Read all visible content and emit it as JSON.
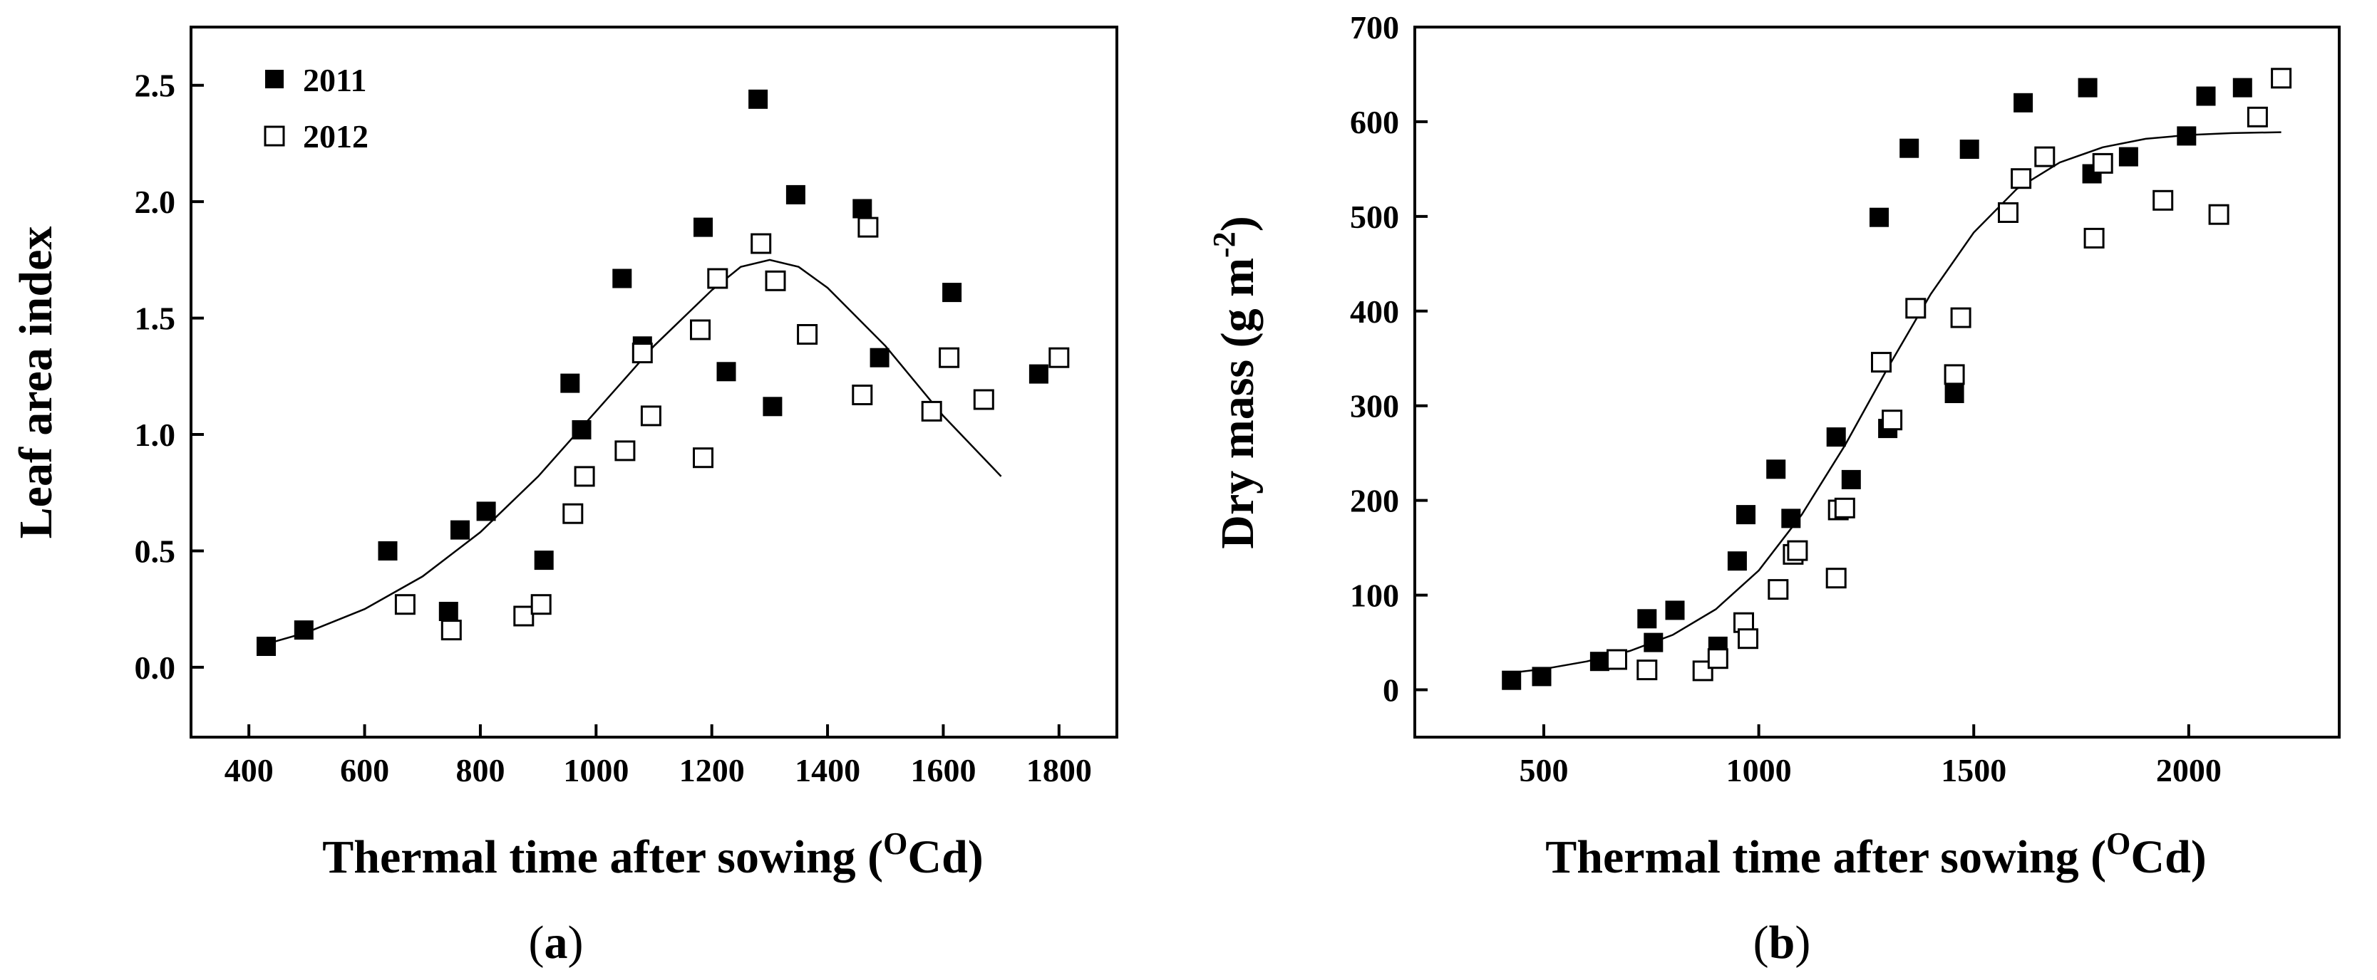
{
  "chart_data": [
    {
      "type": "scatter",
      "panel_label": "a",
      "xlabel": "Thermal time after sowing (",
      "xlabel_sup": "O",
      "xlabel_unit": "Cd)",
      "ylabel": "Leaf area index",
      "xlim": [
        300,
        1900
      ],
      "ylim": [
        -0.3,
        2.75
      ],
      "x_ticks": [
        400,
        600,
        800,
        1000,
        1200,
        1400,
        1600,
        1800
      ],
      "x_tick_labels": [
        "400",
        "600",
        "800",
        "1000",
        "1200",
        "1400",
        "1600",
        "1800"
      ],
      "y_ticks": [
        0,
        0.5,
        1,
        1.5,
        2,
        2.5
      ],
      "y_tick_labels": [
        "0.0",
        "0.5",
        "1.0",
        "1.5",
        "2.0",
        "2.5"
      ],
      "legend": {
        "position": "top-left",
        "entries": [
          "2011",
          "2012"
        ]
      },
      "series": [
        {
          "name": "2011",
          "marker": "filled-square",
          "points": [
            [
              430,
              0.09
            ],
            [
              495,
              0.16
            ],
            [
              640,
              0.5
            ],
            [
              745,
              0.24
            ],
            [
              765,
              0.59
            ],
            [
              810,
              0.67
            ],
            [
              910,
              0.46
            ],
            [
              955,
              1.22
            ],
            [
              975,
              1.02
            ],
            [
              1045,
              1.67
            ],
            [
              1080,
              1.38
            ],
            [
              1185,
              1.89
            ],
            [
              1225,
              1.27
            ],
            [
              1280,
              2.44
            ],
            [
              1305,
              1.12
            ],
            [
              1345,
              2.03
            ],
            [
              1460,
              1.97
            ],
            [
              1490,
              1.33
            ],
            [
              1615,
              1.61
            ],
            [
              1765,
              1.26
            ]
          ]
        },
        {
          "name": "2012",
          "marker": "open-square",
          "points": [
            [
              670,
              0.27
            ],
            [
              750,
              0.16
            ],
            [
              875,
              0.22
            ],
            [
              905,
              0.27
            ],
            [
              960,
              0.66
            ],
            [
              980,
              0.82
            ],
            [
              1080,
              1.35
            ],
            [
              1095,
              1.08
            ],
            [
              1050,
              0.93
            ],
            [
              1180,
              1.45
            ],
            [
              1185,
              0.9
            ],
            [
              1210,
              1.67
            ],
            [
              1285,
              1.82
            ],
            [
              1310,
              1.66
            ],
            [
              1365,
              1.43
            ],
            [
              1460,
              1.17
            ],
            [
              1470,
              1.89
            ],
            [
              1580,
              1.1
            ],
            [
              1610,
              1.33
            ],
            [
              1670,
              1.15
            ],
            [
              1800,
              1.33
            ]
          ]
        }
      ],
      "fit_curve": {
        "name": "fit",
        "points": [
          [
            430,
            0.1
          ],
          [
            500,
            0.15
          ],
          [
            600,
            0.25
          ],
          [
            700,
            0.39
          ],
          [
            800,
            0.58
          ],
          [
            900,
            0.82
          ],
          [
            1000,
            1.1
          ],
          [
            1100,
            1.38
          ],
          [
            1200,
            1.62
          ],
          [
            1250,
            1.72
          ],
          [
            1300,
            1.75
          ],
          [
            1350,
            1.72
          ],
          [
            1400,
            1.63
          ],
          [
            1500,
            1.38
          ],
          [
            1600,
            1.08
          ],
          [
            1700,
            0.82
          ]
        ]
      }
    },
    {
      "type": "scatter",
      "panel_label": "b",
      "xlabel": "Thermal time after sowing (",
      "xlabel_sup": "O",
      "xlabel_unit": "Cd)",
      "ylabel": "Dry mass (g m",
      "ylabel_sup": "-2",
      "ylabel_end": ")",
      "xlim": [
        200,
        2350
      ],
      "ylim": [
        -50,
        700
      ],
      "x_ticks": [
        500,
        1000,
        1500,
        2000
      ],
      "x_tick_labels": [
        "500",
        "1000",
        "1500",
        "2000"
      ],
      "y_ticks": [
        0,
        100,
        200,
        300,
        400,
        500,
        600,
        700
      ],
      "y_tick_labels": [
        "0",
        "100",
        "200",
        "300",
        "400",
        "500",
        "600",
        "700"
      ],
      "series": [
        {
          "name": "2011",
          "marker": "filled-square",
          "points": [
            [
              425,
              10
            ],
            [
              495,
              14
            ],
            [
              630,
              30
            ],
            [
              740,
              75
            ],
            [
              755,
              50
            ],
            [
              805,
              84
            ],
            [
              905,
              46
            ],
            [
              950,
              136
            ],
            [
              970,
              185
            ],
            [
              1040,
              233
            ],
            [
              1075,
              181
            ],
            [
              1180,
              267
            ],
            [
              1215,
              222
            ],
            [
              1280,
              499
            ],
            [
              1300,
              276
            ],
            [
              1350,
              572
            ],
            [
              1455,
              313
            ],
            [
              1490,
              571
            ],
            [
              1615,
              620
            ],
            [
              1765,
              636
            ],
            [
              1775,
              545
            ],
            [
              1860,
              563
            ],
            [
              1995,
              585
            ],
            [
              2040,
              627
            ],
            [
              2125,
              636
            ]
          ]
        },
        {
          "name": "2012",
          "marker": "open-square",
          "points": [
            [
              670,
              32
            ],
            [
              740,
              21
            ],
            [
              870,
              20
            ],
            [
              905,
              33
            ],
            [
              965,
              71
            ],
            [
              975,
              54
            ],
            [
              1045,
              106
            ],
            [
              1080,
              143
            ],
            [
              1090,
              147
            ],
            [
              1180,
              118
            ],
            [
              1185,
              190
            ],
            [
              1200,
              192
            ],
            [
              1285,
              346
            ],
            [
              1310,
              285
            ],
            [
              1365,
              403
            ],
            [
              1455,
              333
            ],
            [
              1470,
              393
            ],
            [
              1580,
              504
            ],
            [
              1610,
              540
            ],
            [
              1665,
              563
            ],
            [
              1780,
              477
            ],
            [
              1800,
              556
            ],
            [
              1940,
              517
            ],
            [
              2070,
              502
            ],
            [
              2160,
              605
            ],
            [
              2215,
              646
            ]
          ]
        }
      ],
      "fit_curve": {
        "name": "fit",
        "points": [
          [
            425,
            18
          ],
          [
            500,
            22
          ],
          [
            600,
            30
          ],
          [
            700,
            41
          ],
          [
            800,
            58
          ],
          [
            900,
            85
          ],
          [
            1000,
            126
          ],
          [
            1100,
            185
          ],
          [
            1200,
            258
          ],
          [
            1300,
            340
          ],
          [
            1400,
            418
          ],
          [
            1500,
            483
          ],
          [
            1600,
            529
          ],
          [
            1700,
            557
          ],
          [
            1800,
            573
          ],
          [
            1900,
            582
          ],
          [
            2000,
            586
          ],
          [
            2100,
            588
          ],
          [
            2215,
            589
          ]
        ]
      }
    }
  ]
}
